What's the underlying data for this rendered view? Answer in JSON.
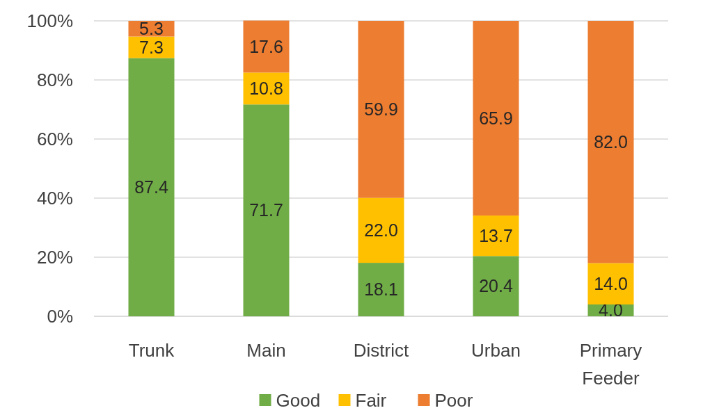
{
  "chart_data": {
    "type": "bar",
    "stacked": true,
    "categories": [
      "Trunk",
      "Main",
      "District",
      "Urban",
      "Primary Feeder"
    ],
    "series": [
      {
        "name": "Good",
        "color": "#70ad47",
        "values": [
          87.4,
          71.7,
          18.1,
          20.4,
          4
        ],
        "value_labels": [
          "87.4",
          "71.7",
          "18.1",
          "20.4",
          "4.0"
        ]
      },
      {
        "name": "Fair",
        "color": "#ffc000",
        "values": [
          7.3,
          10.8,
          22,
          13.7,
          14
        ],
        "value_labels": [
          "7.3",
          "10.8",
          "22.0",
          "13.7",
          "14.0"
        ]
      },
      {
        "name": "Poor",
        "color": "#ed7d31",
        "values": [
          5.3,
          17.6,
          59.9,
          65.9,
          82
        ],
        "value_labels": [
          "5.3",
          "17.6",
          "59.9",
          "65.9",
          "82.0"
        ]
      }
    ],
    "ylim": [
      0,
      100
    ],
    "yticks": [
      {
        "value": 0,
        "label": "0%"
      },
      {
        "value": 20,
        "label": "20%"
      },
      {
        "value": 40,
        "label": "40%"
      },
      {
        "value": 60,
        "label": "60%"
      },
      {
        "value": 80,
        "label": "80%"
      },
      {
        "value": 100,
        "label": "100%"
      }
    ],
    "grid": "y",
    "legend": "bottom"
  }
}
